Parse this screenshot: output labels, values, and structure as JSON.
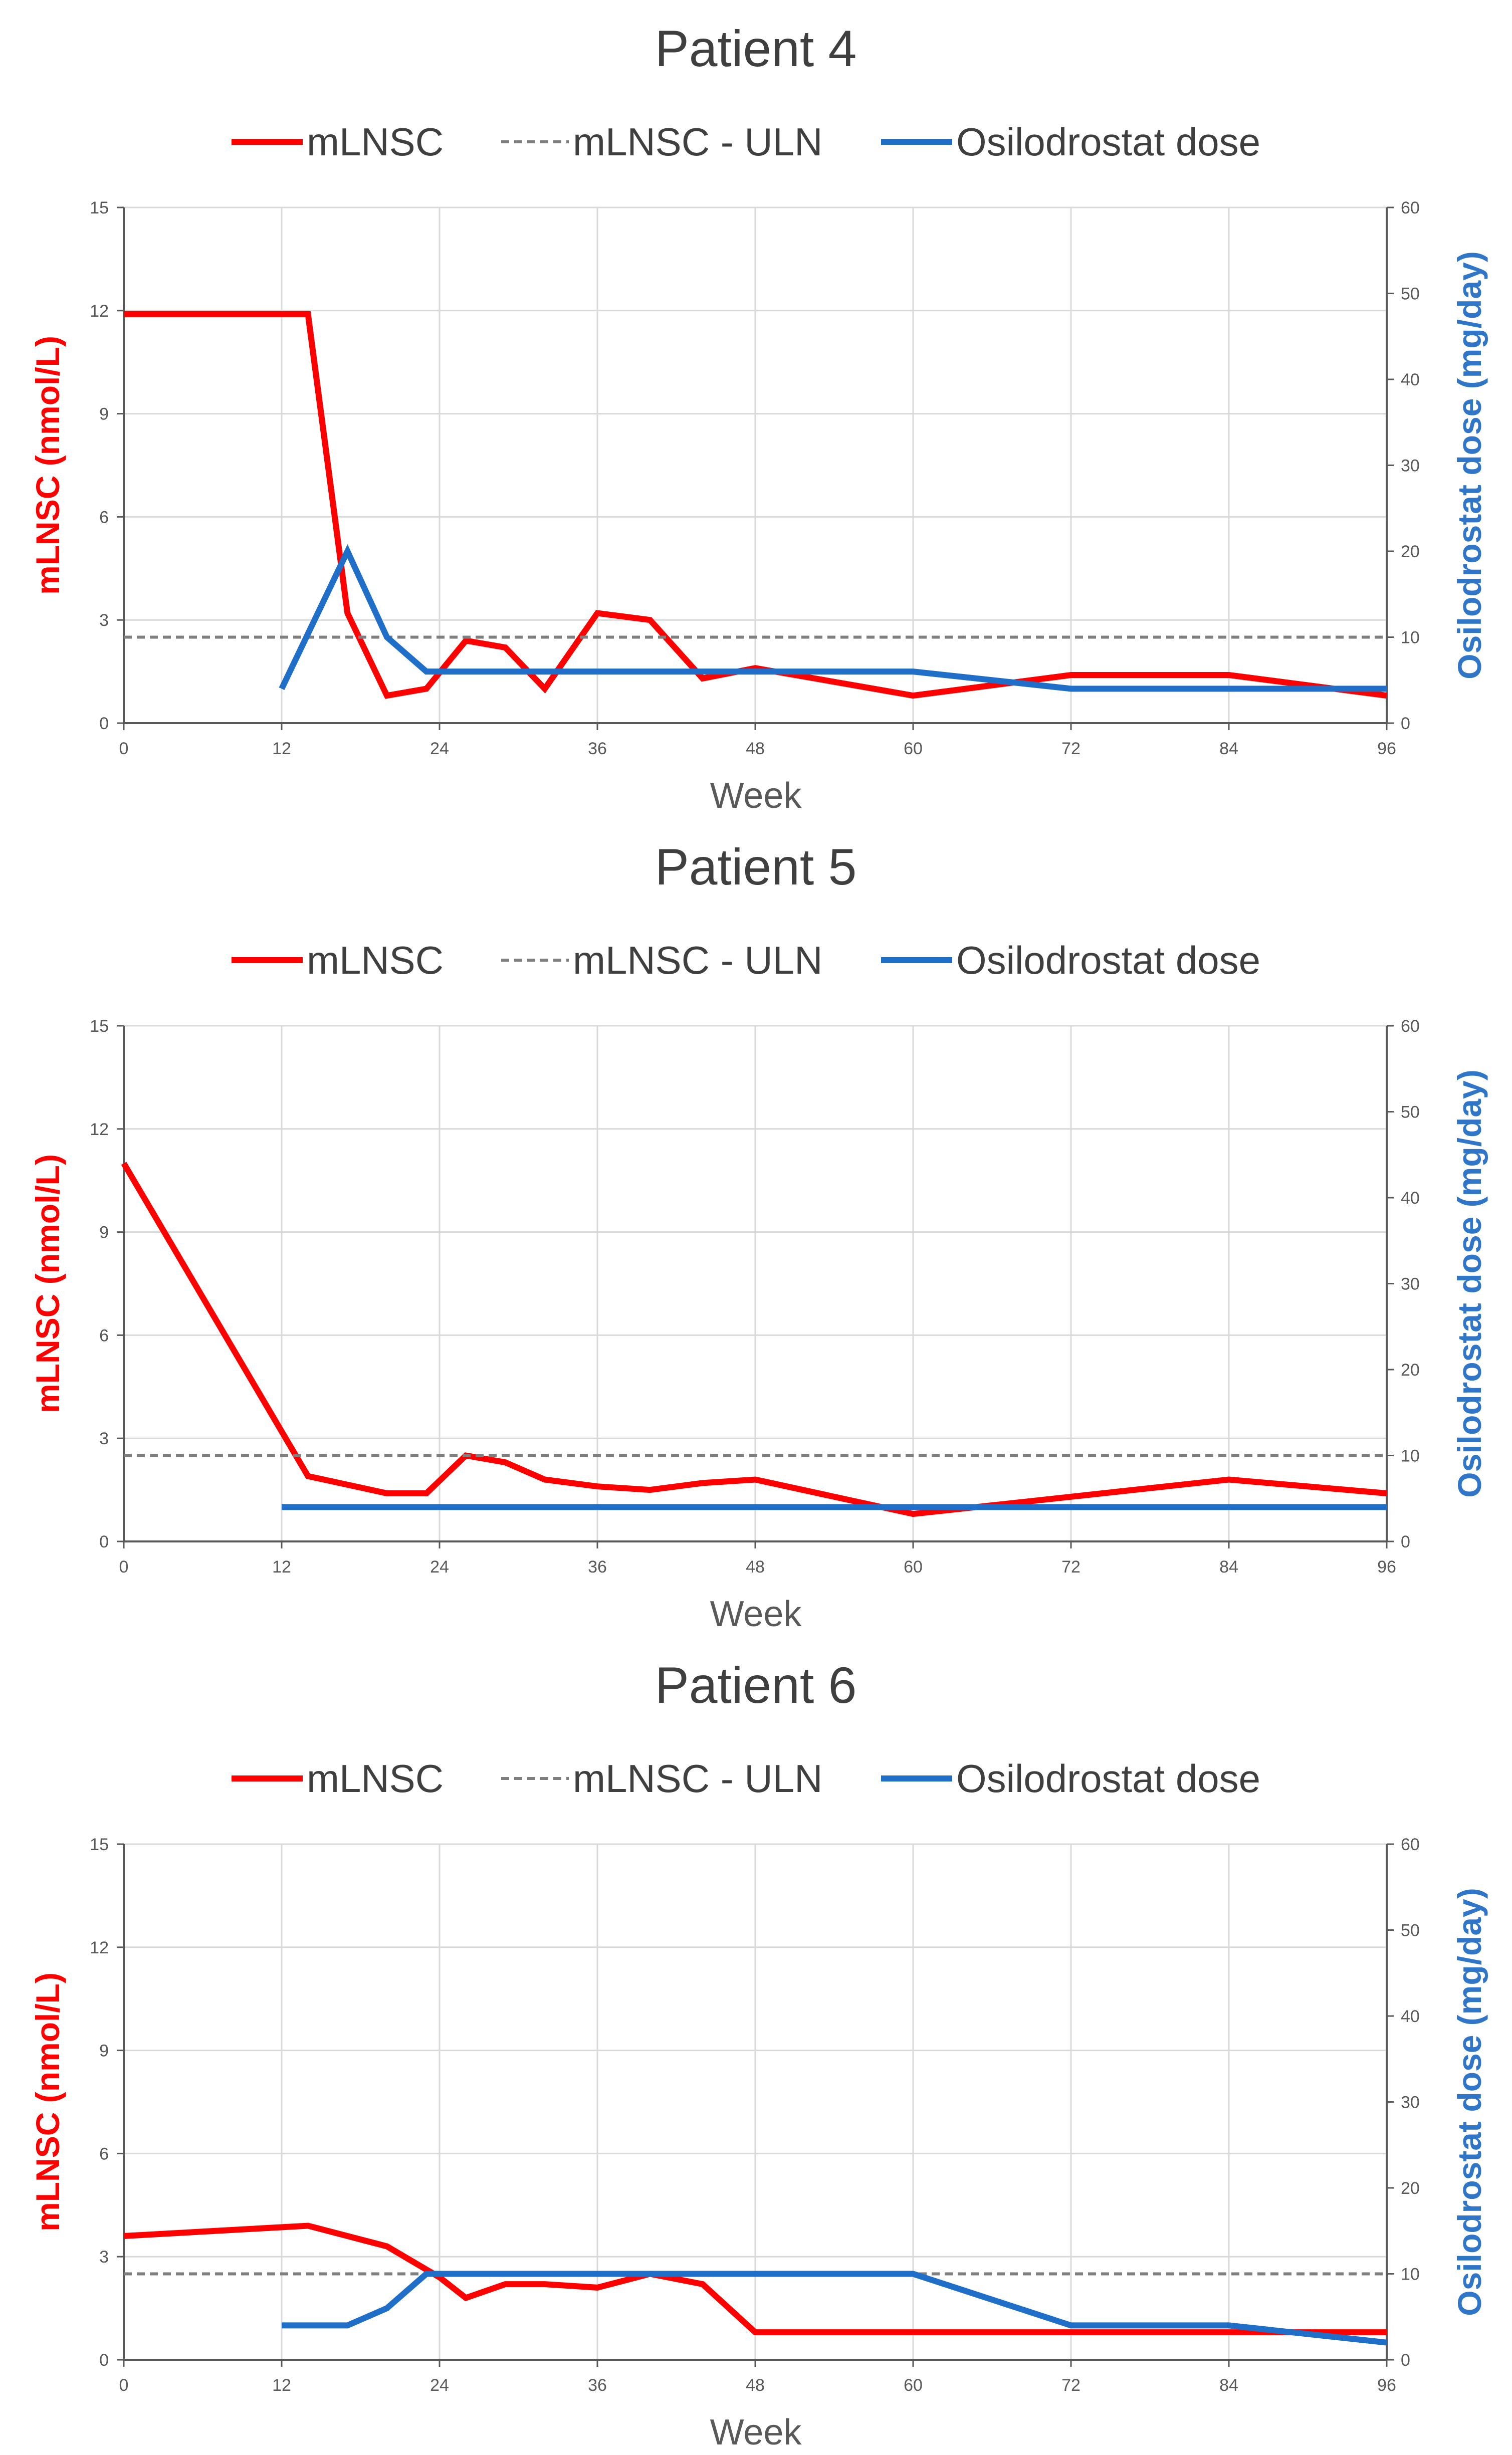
{
  "colors": {
    "mlnsc": "#ff0000",
    "uln": "#7f7f7f",
    "dose": "#1f6fc8",
    "grid": "#d9d9d9",
    "axis": "#595959"
  },
  "chart_data": [
    {
      "type": "line",
      "title": "Patient 4",
      "xlabel": "Week",
      "ylabel": "mLNSC (nmol/L)",
      "y2label": "Osilodrostat dose (mg/day)",
      "xlim": [
        0,
        96
      ],
      "ylim": [
        0,
        15
      ],
      "y2lim": [
        0,
        60
      ],
      "xticks": [
        0,
        12,
        24,
        36,
        48,
        60,
        72,
        84,
        96
      ],
      "yticks": [
        0,
        3,
        6,
        9,
        12,
        15
      ],
      "y2ticks": [
        0,
        10,
        20,
        30,
        40,
        50,
        60
      ],
      "legend": [
        "mLNSC",
        "mLNSC - ULN",
        "Osilodrostat dose"
      ],
      "series": [
        {
          "name": "mLNSC",
          "axis": "left",
          "style": "solid",
          "x": [
            0,
            14,
            17,
            20,
            23,
            26,
            29,
            32,
            36,
            40,
            44,
            48,
            60,
            72,
            84,
            96
          ],
          "y": [
            11.9,
            11.9,
            3.2,
            0.8,
            1.0,
            2.4,
            2.2,
            1.0,
            3.2,
            3.0,
            1.3,
            1.6,
            0.8,
            1.4,
            1.4,
            0.8
          ]
        },
        {
          "name": "mLNSC - ULN",
          "axis": "left",
          "style": "dashed",
          "x": [
            0,
            96
          ],
          "y": [
            2.5,
            2.5
          ]
        },
        {
          "name": "Osilodrostat dose",
          "axis": "right",
          "style": "solid",
          "x": [
            12,
            17,
            20,
            23,
            60,
            72,
            96
          ],
          "y": [
            4,
            20,
            10,
            6,
            6,
            4,
            4
          ]
        }
      ]
    },
    {
      "type": "line",
      "title": "Patient 5",
      "xlabel": "Week",
      "ylabel": "mLNSC (nmol/L)",
      "y2label": "Osilodrostat dose (mg/day)",
      "xlim": [
        0,
        96
      ],
      "ylim": [
        0,
        15
      ],
      "y2lim": [
        0,
        60
      ],
      "xticks": [
        0,
        12,
        24,
        36,
        48,
        60,
        72,
        84,
        96
      ],
      "yticks": [
        0,
        3,
        6,
        9,
        12,
        15
      ],
      "y2ticks": [
        0,
        10,
        20,
        30,
        40,
        50,
        60
      ],
      "legend": [
        "mLNSC",
        "mLNSC - ULN",
        "Osilodrostat dose"
      ],
      "series": [
        {
          "name": "mLNSC",
          "axis": "left",
          "style": "solid",
          "x": [
            0,
            14,
            20,
            23,
            26,
            29,
            32,
            36,
            40,
            44,
            48,
            60,
            72,
            84,
            96
          ],
          "y": [
            11.0,
            1.9,
            1.4,
            1.4,
            2.5,
            2.3,
            1.8,
            1.6,
            1.5,
            1.7,
            1.8,
            0.8,
            1.3,
            1.8,
            1.4
          ]
        },
        {
          "name": "mLNSC - ULN",
          "axis": "left",
          "style": "dashed",
          "x": [
            0,
            96
          ],
          "y": [
            2.5,
            2.5
          ]
        },
        {
          "name": "Osilodrostat dose",
          "axis": "right",
          "style": "solid",
          "x": [
            12,
            96
          ],
          "y": [
            4,
            4
          ]
        }
      ]
    },
    {
      "type": "line",
      "title": "Patient 6",
      "xlabel": "Week",
      "ylabel": "mLNSC (nmol/L)",
      "y2label": "Osilodrostat dose (mg/day)",
      "xlim": [
        0,
        96
      ],
      "ylim": [
        0,
        15
      ],
      "y2lim": [
        0,
        60
      ],
      "xticks": [
        0,
        12,
        24,
        36,
        48,
        60,
        72,
        84,
        96
      ],
      "yticks": [
        0,
        3,
        6,
        9,
        12,
        15
      ],
      "y2ticks": [
        0,
        10,
        20,
        30,
        40,
        50,
        60
      ],
      "legend": [
        "mLNSC",
        "mLNSC - ULN",
        "Osilodrostat dose"
      ],
      "series": [
        {
          "name": "mLNSC",
          "axis": "left",
          "style": "solid",
          "x": [
            0,
            14,
            20,
            24,
            26,
            29,
            32,
            36,
            40,
            44,
            48,
            60,
            72,
            84,
            96
          ],
          "y": [
            3.6,
            3.9,
            3.3,
            2.4,
            1.8,
            2.2,
            2.2,
            2.1,
            2.5,
            2.2,
            0.8,
            0.8,
            0.8,
            0.8,
            0.8
          ]
        },
        {
          "name": "mLNSC - ULN",
          "axis": "left",
          "style": "dashed",
          "x": [
            0,
            96
          ],
          "y": [
            2.5,
            2.5
          ]
        },
        {
          "name": "Osilodrostat dose",
          "axis": "right",
          "style": "solid",
          "x": [
            12,
            17,
            20,
            23,
            60,
            72,
            84,
            96
          ],
          "y": [
            4,
            4,
            6,
            10,
            10,
            4,
            4,
            2
          ]
        }
      ]
    }
  ]
}
